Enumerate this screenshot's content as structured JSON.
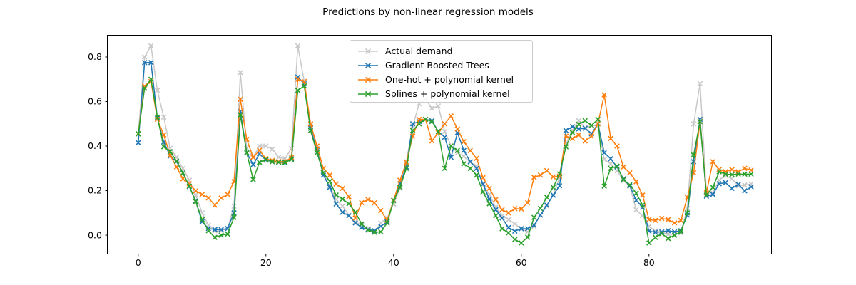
{
  "title": "Predictions by non-linear regression models",
  "chart_data": {
    "type": "line",
    "marker": "x",
    "grid": false,
    "title": "Predictions by non-linear regression models",
    "xlabel": "",
    "ylabel": "",
    "xlim": [
      -4.78,
      99.13
    ],
    "ylim": [
      -0.083,
      0.896
    ],
    "xticks": [
      0,
      20,
      40,
      60,
      80
    ],
    "yticks": [
      0.0,
      0.2,
      0.4,
      0.6,
      0.8
    ],
    "legend_position": "upper center",
    "x": [
      0,
      1,
      2,
      3,
      4,
      5,
      6,
      7,
      8,
      9,
      10,
      11,
      12,
      13,
      14,
      15,
      16,
      17,
      18,
      19,
      20,
      21,
      22,
      23,
      24,
      25,
      26,
      27,
      28,
      29,
      30,
      31,
      32,
      33,
      34,
      35,
      36,
      37,
      38,
      39,
      40,
      41,
      42,
      43,
      44,
      45,
      46,
      47,
      48,
      49,
      50,
      51,
      52,
      53,
      54,
      55,
      56,
      57,
      58,
      59,
      60,
      61,
      62,
      63,
      64,
      65,
      66,
      67,
      68,
      69,
      70,
      71,
      72,
      73,
      74,
      75,
      76,
      77,
      78,
      79,
      80,
      81,
      82,
      83,
      84,
      85,
      86,
      87,
      88,
      89,
      90,
      91,
      92,
      93,
      94,
      95,
      96
    ],
    "series": [
      {
        "name": "Actual demand",
        "color": "#c8c8c8",
        "values": [
          0.455,
          0.8,
          0.85,
          0.65,
          0.53,
          0.39,
          0.35,
          0.3,
          0.247,
          0.18,
          0.1,
          0.045,
          0.02,
          0.02,
          0.03,
          0.13,
          0.73,
          0.39,
          0.35,
          0.4,
          0.4,
          0.386,
          0.35,
          0.343,
          0.39,
          0.85,
          0.69,
          0.49,
          0.39,
          0.28,
          0.22,
          0.16,
          0.13,
          0.09,
          0.06,
          0.045,
          0.03,
          0.015,
          0.055,
          0.077,
          0.14,
          0.21,
          0.33,
          0.49,
          0.59,
          0.61,
          0.57,
          0.58,
          0.466,
          0.402,
          0.37,
          0.354,
          0.327,
          0.31,
          0.226,
          0.183,
          0.125,
          0.087,
          0.07,
          0.05,
          0.03,
          0.015,
          0.04,
          0.09,
          0.13,
          0.18,
          0.26,
          0.41,
          0.471,
          0.514,
          0.482,
          0.493,
          0.49,
          0.34,
          0.32,
          0.29,
          0.245,
          0.22,
          0.114,
          0.087,
          0.04,
          0.018,
          0.013,
          0.005,
          0.003,
          0.01,
          0.12,
          0.5,
          0.68,
          0.19,
          0.19,
          0.247,
          0.268,
          0.253,
          0.222,
          0.225,
          0.23
        ]
      },
      {
        "name": "Gradient Boosted Trees",
        "color": "#1f77b4",
        "values": [
          0.415,
          0.775,
          0.775,
          0.525,
          0.418,
          0.355,
          0.33,
          0.279,
          0.218,
          0.153,
          0.06,
          0.03,
          0.025,
          0.025,
          0.03,
          0.1,
          0.555,
          0.37,
          0.317,
          0.365,
          0.337,
          0.33,
          0.327,
          0.325,
          0.343,
          0.71,
          0.68,
          0.48,
          0.38,
          0.27,
          0.215,
          0.14,
          0.103,
          0.087,
          0.055,
          0.034,
          0.025,
          0.02,
          0.04,
          0.06,
          0.157,
          0.231,
          0.306,
          0.5,
          0.51,
          0.52,
          0.514,
          0.466,
          0.44,
          0.35,
          0.46,
          0.38,
          0.33,
          0.3,
          0.23,
          0.162,
          0.114,
          0.077,
          0.034,
          0.018,
          0.029,
          0.029,
          0.045,
          0.09,
          0.135,
          0.18,
          0.222,
          0.47,
          0.487,
          0.477,
          0.48,
          0.455,
          0.5,
          0.37,
          0.343,
          0.306,
          0.253,
          0.221,
          0.157,
          0.125,
          0.018,
          0.013,
          0.015,
          0.02,
          0.015,
          0.02,
          0.09,
          0.33,
          0.52,
          0.175,
          0.183,
          0.231,
          0.236,
          0.21,
          0.228,
          0.199,
          0.217
        ]
      },
      {
        "name": "One-hot + polynomial kernel",
        "color": "#ff7f0e",
        "values": [
          0.455,
          0.67,
          0.69,
          0.52,
          0.45,
          0.359,
          0.306,
          0.253,
          0.231,
          0.199,
          0.183,
          0.167,
          0.135,
          0.167,
          0.183,
          0.24,
          0.61,
          0.43,
          0.35,
          0.381,
          0.343,
          0.335,
          0.33,
          0.33,
          0.35,
          0.7,
          0.69,
          0.5,
          0.4,
          0.3,
          0.27,
          0.23,
          0.21,
          0.173,
          0.077,
          0.146,
          0.16,
          0.145,
          0.11,
          0.066,
          0.157,
          0.247,
          0.327,
          0.445,
          0.52,
          0.52,
          0.423,
          0.46,
          0.5,
          0.535,
          0.477,
          0.42,
          0.38,
          0.345,
          0.258,
          0.21,
          0.16,
          0.114,
          0.1,
          0.119,
          0.118,
          0.146,
          0.26,
          0.27,
          0.29,
          0.262,
          0.265,
          0.445,
          0.434,
          0.45,
          0.423,
          0.445,
          0.5,
          0.63,
          0.434,
          0.4,
          0.306,
          0.28,
          0.24,
          0.18,
          0.07,
          0.066,
          0.075,
          0.07,
          0.055,
          0.066,
          0.17,
          0.28,
          0.51,
          0.19,
          0.33,
          0.295,
          0.285,
          0.295,
          0.285,
          0.3,
          0.292
        ]
      },
      {
        "name": "Splines + polynomial kernel",
        "color": "#2ca02c",
        "values": [
          0.455,
          0.66,
          0.7,
          0.53,
          0.397,
          0.375,
          0.333,
          0.279,
          0.22,
          0.151,
          0.07,
          0.02,
          -0.01,
          0.0,
          0.005,
          0.08,
          0.54,
          0.37,
          0.25,
          0.327,
          0.34,
          0.33,
          0.327,
          0.327,
          0.34,
          0.65,
          0.67,
          0.47,
          0.37,
          0.28,
          0.242,
          0.18,
          0.162,
          0.141,
          0.103,
          0.05,
          0.023,
          0.013,
          0.015,
          0.055,
          0.155,
          0.215,
          0.3,
          0.47,
          0.5,
          0.52,
          0.51,
          0.466,
          0.3,
          0.4,
          0.38,
          0.32,
          0.3,
          0.27,
          0.194,
          0.141,
          0.087,
          0.029,
          0.01,
          -0.019,
          -0.035,
          -0.009,
          0.08,
          0.12,
          0.17,
          0.215,
          0.275,
          0.397,
          0.461,
          0.498,
          0.514,
          0.493,
          0.52,
          0.22,
          0.3,
          0.31,
          0.25,
          0.226,
          0.189,
          0.135,
          -0.035,
          -0.01,
          0.007,
          -0.015,
          0.0,
          0.015,
          0.1,
          0.36,
          0.51,
          0.18,
          0.215,
          0.285,
          0.274,
          0.272,
          0.274,
          0.274,
          0.274
        ]
      }
    ]
  }
}
